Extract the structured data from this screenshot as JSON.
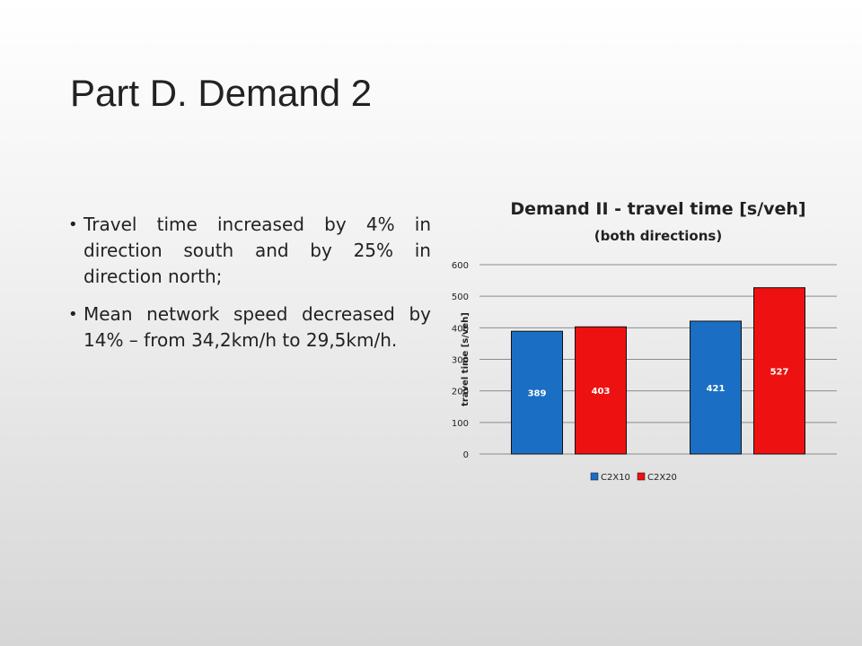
{
  "slide": {
    "title": "Part D. Demand 2",
    "bullets": [
      "Travel time increased by 4% in direction south and by 25% in direction north;",
      "Mean network speed decreased by 14% – from 34,2km/h to 29,5km/h."
    ]
  },
  "chart_data": {
    "type": "bar",
    "title": "Demand II - travel time  [s/veh]",
    "subtitle": "(both directions)",
    "ylabel": "travel time [s/veh]",
    "xlabel": "",
    "ylim": [
      0,
      600
    ],
    "yticks": [
      0,
      100,
      200,
      300,
      400,
      500,
      600
    ],
    "grid": true,
    "legend_position": "bottom",
    "groups": 2,
    "series": [
      {
        "name": "C2X10",
        "color": "#1a6fc4",
        "values": [
          389,
          421
        ]
      },
      {
        "name": "C2X20",
        "color": "#ee1111",
        "values": [
          403,
          527
        ]
      }
    ]
  }
}
